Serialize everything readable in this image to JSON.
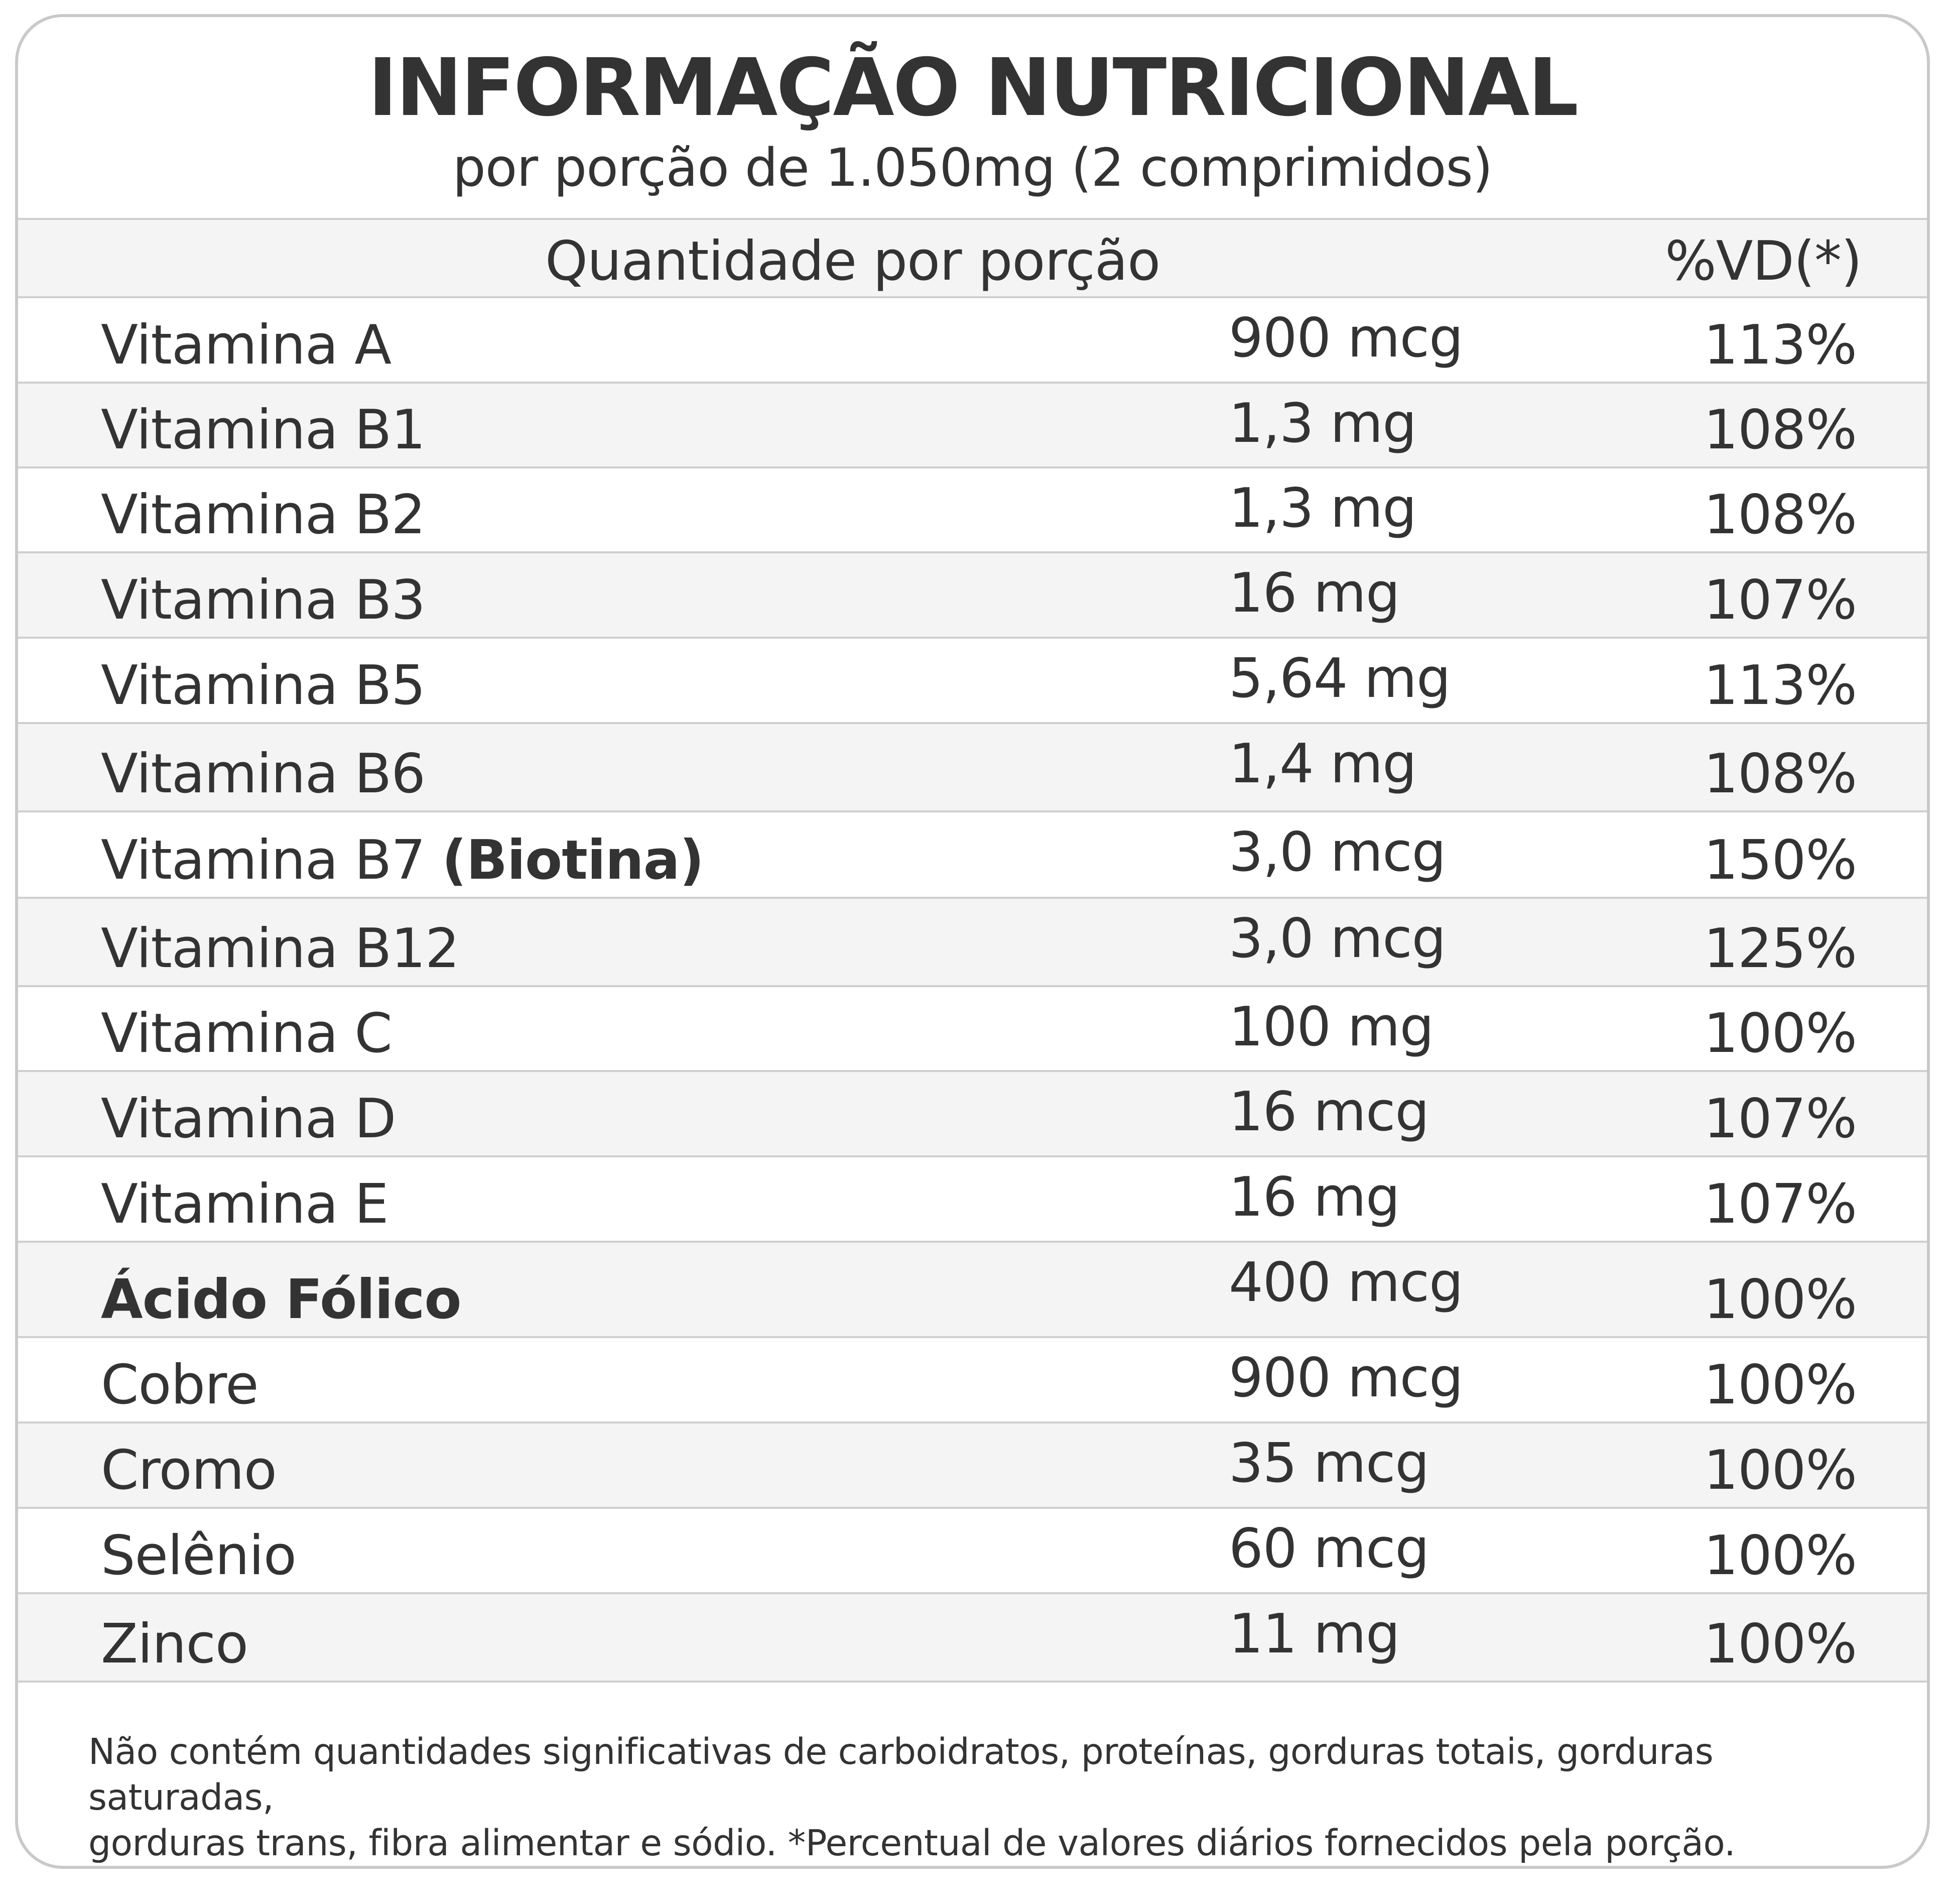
{
  "title": "INFORMAÇÃO NUTRICIONAL",
  "subtitle": "por porção de 1.050mg (2 comprimidos)",
  "header": {
    "quantity_label": "Quantidade por porção",
    "dv_label": "%VD(*)"
  },
  "rows": [
    {
      "name": "Vitamina A",
      "bold_suffix": "",
      "quantity": "900 mcg",
      "dv": "113%"
    },
    {
      "name": "Vitamina B1",
      "bold_suffix": "",
      "quantity": "1,3 mg",
      "dv": "108%"
    },
    {
      "name": "Vitamina B2",
      "bold_suffix": "",
      "quantity": "1,3 mg",
      "dv": "108%"
    },
    {
      "name": "Vitamina B3",
      "bold_suffix": "",
      "quantity": "16 mg",
      "dv": "107%"
    },
    {
      "name": "Vitamina B5",
      "bold_suffix": "",
      "quantity": "5,64 mg",
      "dv": "113%"
    },
    {
      "name": "Vitamina B6",
      "bold_suffix": "",
      "quantity": "1,4 mg",
      "dv": "108%"
    },
    {
      "name": "Vitamina B7 ",
      "bold_suffix": "(Biotina)",
      "quantity": "3,0 mcg",
      "dv": "150%"
    },
    {
      "name": "Vitamina B12",
      "bold_suffix": "",
      "quantity": "3,0 mcg",
      "dv": "125%"
    },
    {
      "name": "Vitamina C",
      "bold_suffix": "",
      "quantity": "100 mg",
      "dv": "100%"
    },
    {
      "name": "Vitamina D",
      "bold_suffix": "",
      "quantity": "16 mcg",
      "dv": "107%"
    },
    {
      "name": "Vitamina E",
      "bold_suffix": "",
      "quantity": "16 mg",
      "dv": "107%"
    },
    {
      "name": "",
      "bold_suffix": "Ácido Fólico",
      "quantity": "400 mcg",
      "dv": "100%"
    },
    {
      "name": "Cobre",
      "bold_suffix": "",
      "quantity": "900 mcg",
      "dv": "100%"
    },
    {
      "name": "Cromo",
      "bold_suffix": "",
      "quantity": "35 mcg",
      "dv": "100%"
    },
    {
      "name": "Selênio",
      "bold_suffix": "",
      "quantity": "60 mcg",
      "dv": "100%"
    },
    {
      "name": "Zinco",
      "bold_suffix": "",
      "quantity": "11 mg",
      "dv": "100%"
    }
  ],
  "footnote_line1": "Não contém quantidades significativas de carboidratos, proteínas, gorduras totais, gorduras saturadas,",
  "footnote_line2": "gorduras trans, fibra alimentar e sódio. *Percentual de valores diários fornecidos pela porção."
}
